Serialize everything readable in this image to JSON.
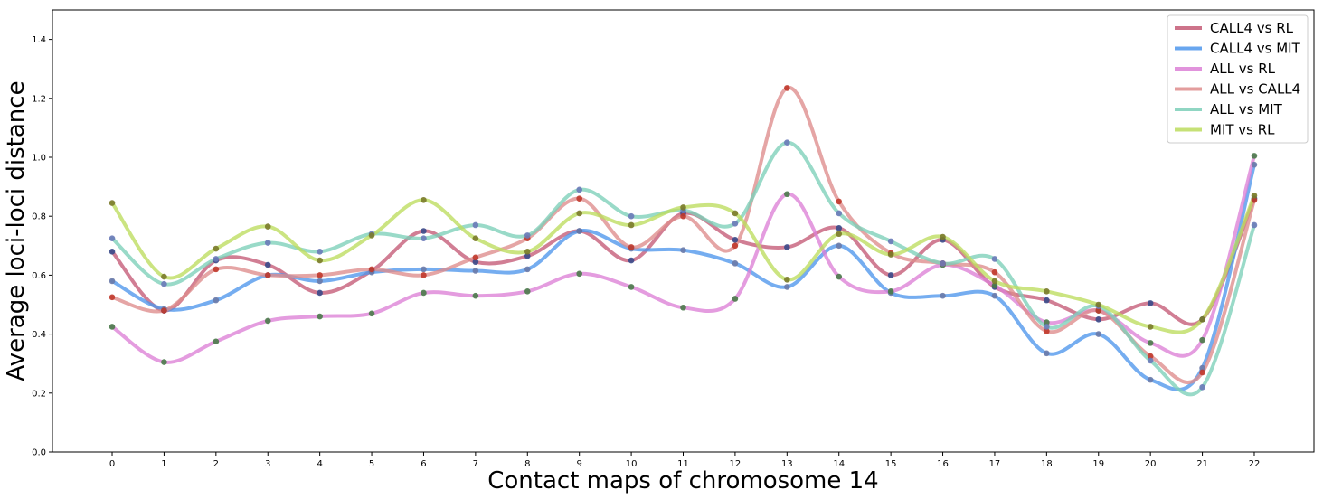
{
  "chart_data": {
    "type": "line",
    "xlabel": "Contact maps of chromosome 14",
    "ylabel": "Average loci-loci distance",
    "x": [
      0,
      1,
      2,
      3,
      4,
      5,
      6,
      7,
      8,
      9,
      10,
      11,
      12,
      13,
      14,
      15,
      16,
      17,
      18,
      19,
      20,
      21,
      22
    ],
    "xlim": [
      -1.15,
      23.15
    ],
    "ylim": [
      0.0,
      1.5
    ],
    "yticks": [
      0.0,
      0.2,
      0.4,
      0.6,
      0.8,
      1.0,
      1.2,
      1.4
    ],
    "ytick_labels": [
      "0.0",
      "0.2",
      "0.4",
      "0.6",
      "0.8",
      "1.0",
      "1.2",
      "1.4"
    ],
    "grid": false,
    "legend_position": "top-right",
    "series": [
      {
        "name": "CALL4 vs RL",
        "color": "#c45a76",
        "marker_color": "#3a4a8a",
        "values": [
          0.68,
          0.48,
          0.65,
          0.635,
          0.54,
          0.615,
          0.75,
          0.645,
          0.665,
          0.75,
          0.65,
          0.81,
          0.72,
          0.695,
          0.76,
          0.6,
          0.72,
          0.56,
          0.515,
          0.45,
          0.505,
          0.45,
          0.86
        ]
      },
      {
        "name": "CALL4 vs MIT",
        "color": "#4e96ec",
        "marker_color": "#6a7aa8",
        "values": [
          0.58,
          0.485,
          0.515,
          0.6,
          0.58,
          0.61,
          0.62,
          0.615,
          0.62,
          0.75,
          0.69,
          0.685,
          0.64,
          0.56,
          0.7,
          0.54,
          0.53,
          0.53,
          0.335,
          0.4,
          0.245,
          0.285,
          0.975
        ]
      },
      {
        "name": "ALL vs RL",
        "color": "#dc80d6",
        "marker_color": "#4a7a4a",
        "values": [
          0.425,
          0.305,
          0.375,
          0.445,
          0.46,
          0.47,
          0.54,
          0.53,
          0.545,
          0.605,
          0.56,
          0.49,
          0.52,
          0.875,
          0.595,
          0.545,
          0.635,
          0.565,
          0.44,
          0.48,
          0.37,
          0.38,
          1.005
        ]
      },
      {
        "name": "ALL vs CALL4",
        "color": "#de8c8c",
        "marker_color": "#c0392b",
        "values": [
          0.525,
          0.48,
          0.62,
          0.6,
          0.6,
          0.62,
          0.6,
          0.66,
          0.725,
          0.86,
          0.695,
          0.8,
          0.7,
          1.235,
          0.85,
          0.675,
          0.64,
          0.61,
          0.41,
          0.48,
          0.325,
          0.27,
          0.855
        ]
      },
      {
        "name": "ALL vs MIT",
        "color": "#7ccfb8",
        "marker_color": "#6a7ab8",
        "values": [
          0.725,
          0.57,
          0.655,
          0.71,
          0.68,
          0.74,
          0.725,
          0.77,
          0.735,
          0.89,
          0.8,
          0.82,
          0.775,
          1.05,
          0.81,
          0.715,
          0.64,
          0.655,
          0.425,
          0.495,
          0.31,
          0.22,
          0.77
        ]
      },
      {
        "name": "MIT vs RL",
        "color": "#bcdc5e",
        "marker_color": "#7a7a2a",
        "values": [
          0.845,
          0.595,
          0.69,
          0.765,
          0.65,
          0.735,
          0.855,
          0.725,
          0.68,
          0.81,
          0.77,
          0.83,
          0.81,
          0.585,
          0.74,
          0.67,
          0.73,
          0.58,
          0.545,
          0.5,
          0.425,
          0.45,
          0.87
        ]
      }
    ]
  }
}
